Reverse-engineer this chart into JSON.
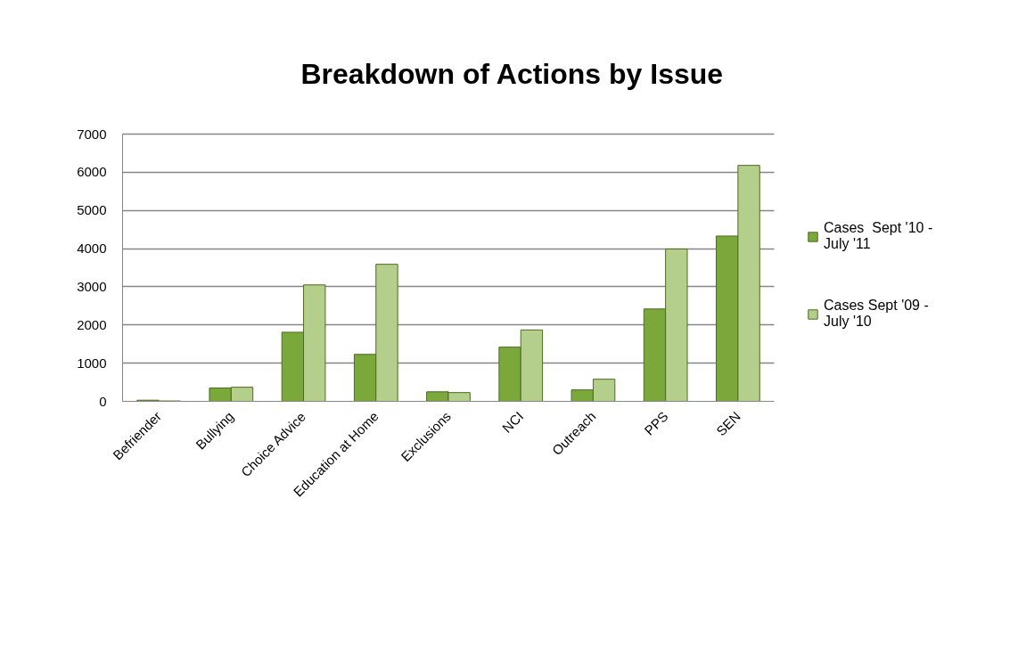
{
  "chart_data": {
    "type": "bar",
    "title": "Breakdown of Actions by Issue",
    "categories": [
      "Befriender",
      "Bullying",
      "Choice Advice",
      "Education at Home",
      "Exclusions",
      "NCI",
      "Outreach",
      "PPS",
      "SEN"
    ],
    "series": [
      {
        "name": "Cases  Sept '10 - July '11",
        "color": "#7aa83a",
        "values": [
          30,
          350,
          1810,
          1230,
          250,
          1420,
          300,
          2420,
          4330
        ]
      },
      {
        "name": "Cases Sept '09 - July '10",
        "color": "#b3cf8b",
        "values": [
          10,
          370,
          3050,
          3590,
          230,
          1870,
          580,
          3990,
          6180
        ]
      }
    ],
    "ylim": [
      0,
      7000
    ],
    "yticks": [
      0,
      1000,
      2000,
      3000,
      4000,
      5000,
      6000,
      7000
    ],
    "grid": "y",
    "legend": "right"
  }
}
